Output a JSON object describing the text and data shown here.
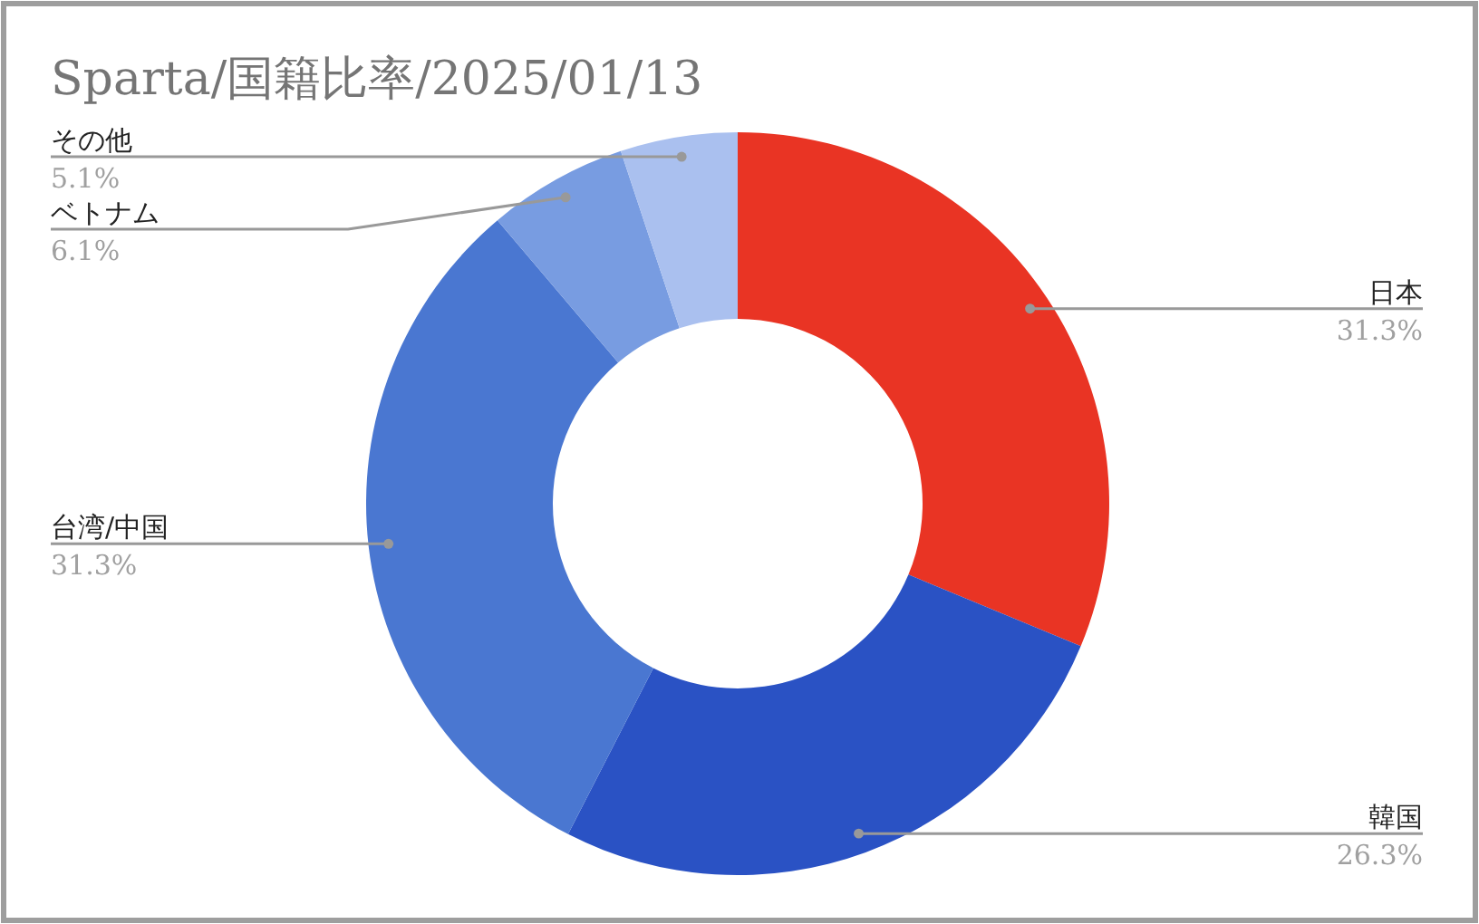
{
  "chart_data": {
    "type": "donut",
    "title": "Sparta/国籍比率/2025/01/13",
    "categories": [
      "日本",
      "韓国",
      "台湾/中国",
      "ベトナム",
      "その他"
    ],
    "values": [
      31.3,
      26.3,
      31.3,
      6.1,
      5.1
    ],
    "colors": [
      "#e93424",
      "#2a52c4",
      "#4a77d1",
      "#789ce1",
      "#aac0ef"
    ],
    "value_labels": [
      "31.3%",
      "26.3%",
      "31.3%",
      "6.1%",
      "5.1%"
    ]
  }
}
